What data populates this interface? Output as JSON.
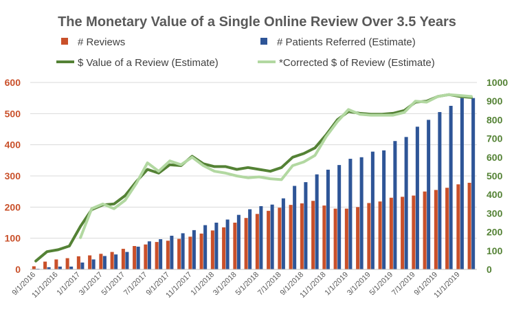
{
  "chart_data": {
    "type": "bar",
    "title": "The Monetary Value of a Single Online Review Over 3.5 Years",
    "categories": [
      "9/1/2016",
      "10/1/2016",
      "11/1/2016",
      "12/1/2016",
      "1/1/2017",
      "2/1/2017",
      "3/1/2017",
      "4/1/2017",
      "5/1/2017",
      "6/1/2017",
      "7/1/2017",
      "8/1/2017",
      "9/1/2017",
      "10/1/2017",
      "11/1/2017",
      "12/1/2017",
      "1/1/2018",
      "2/1/2018",
      "3/1/2018",
      "4/1/2018",
      "5/1/2018",
      "6/1/2018",
      "7/1/2018",
      "8/1/2018",
      "9/1/2018",
      "10/1/2018",
      "11/1/2018",
      "12/1/2018",
      "1/1/2019",
      "2/1/2019",
      "3/1/2019",
      "4/1/2019",
      "5/1/2019",
      "6/1/2019",
      "7/1/2019",
      "8/1/2019",
      "9/1/2019",
      "10/1/2019",
      "11/1/2019",
      "12/1/2019"
    ],
    "tick_labels": [
      "9/1/2016",
      "11/1/2016",
      "1/1/2017",
      "3/1/2017",
      "5/1/2017",
      "7/1/2017",
      "9/1/2017",
      "11/1/2017",
      "1/1/2018",
      "3/1/2018",
      "5/1/2018",
      "7/1/2018",
      "9/1/2018",
      "11/1/2018",
      "1/1/2019",
      "3/1/2019",
      "5/1/2019",
      "7/1/2019",
      "9/1/2019",
      "11/1/2019"
    ],
    "series": [
      {
        "name": "# Reviews",
        "kind": "bar",
        "axis": "left",
        "color": "#C9502A",
        "values": [
          10,
          25,
          32,
          36,
          42,
          45,
          50,
          56,
          66,
          75,
          80,
          88,
          92,
          98,
          105,
          115,
          125,
          135,
          150,
          165,
          178,
          188,
          198,
          207,
          212,
          220,
          205,
          195,
          195,
          200,
          213,
          218,
          230,
          233,
          237,
          250,
          255,
          262,
          273,
          278
        ]
      },
      {
        "name": "# Patients Referred (Estimate)",
        "kind": "bar",
        "axis": "left",
        "color": "#2E5597",
        "values": [
          2,
          7,
          9,
          9,
          22,
          32,
          43,
          48,
          56,
          73,
          90,
          97,
          108,
          116,
          126,
          142,
          150,
          160,
          175,
          193,
          203,
          208,
          228,
          268,
          280,
          305,
          320,
          335,
          355,
          360,
          378,
          382,
          412,
          425,
          458,
          480,
          505,
          525,
          550,
          550
        ]
      },
      {
        "name": "$ Value of a Review (Estimate)",
        "kind": "line",
        "axis": "right",
        "color": "#548235",
        "values": [
          45,
          95,
          105,
          125,
          230,
          320,
          345,
          350,
          395,
          470,
          535,
          515,
          560,
          555,
          605,
          565,
          550,
          550,
          535,
          545,
          535,
          525,
          545,
          600,
          620,
          650,
          720,
          800,
          845,
          835,
          830,
          830,
          835,
          850,
          895,
          900,
          925,
          935,
          925,
          920
        ]
      },
      {
        "name": "*Corrected $ of Review (Estimate)",
        "kind": "line",
        "axis": "right",
        "color": "#B2D8A1",
        "values": [
          null,
          null,
          null,
          null,
          170,
          325,
          350,
          325,
          370,
          460,
          570,
          525,
          580,
          560,
          600,
          555,
          525,
          515,
          500,
          490,
          495,
          485,
          480,
          555,
          575,
          610,
          710,
          790,
          855,
          830,
          825,
          825,
          825,
          840,
          900,
          895,
          925,
          935,
          930,
          925
        ]
      }
    ],
    "y_left": {
      "min": 0,
      "max": 600,
      "ticks": [
        "0",
        "100",
        "200",
        "300",
        "400",
        "500",
        "600"
      ],
      "color": "#C9502A"
    },
    "y_right": {
      "min": 0,
      "max": 1000,
      "ticks": [
        "0",
        "100",
        "200",
        "300",
        "400",
        "500",
        "600",
        "700",
        "800",
        "900",
        "1000"
      ],
      "color": "#548235"
    },
    "grid": true,
    "legend_position": "top"
  }
}
